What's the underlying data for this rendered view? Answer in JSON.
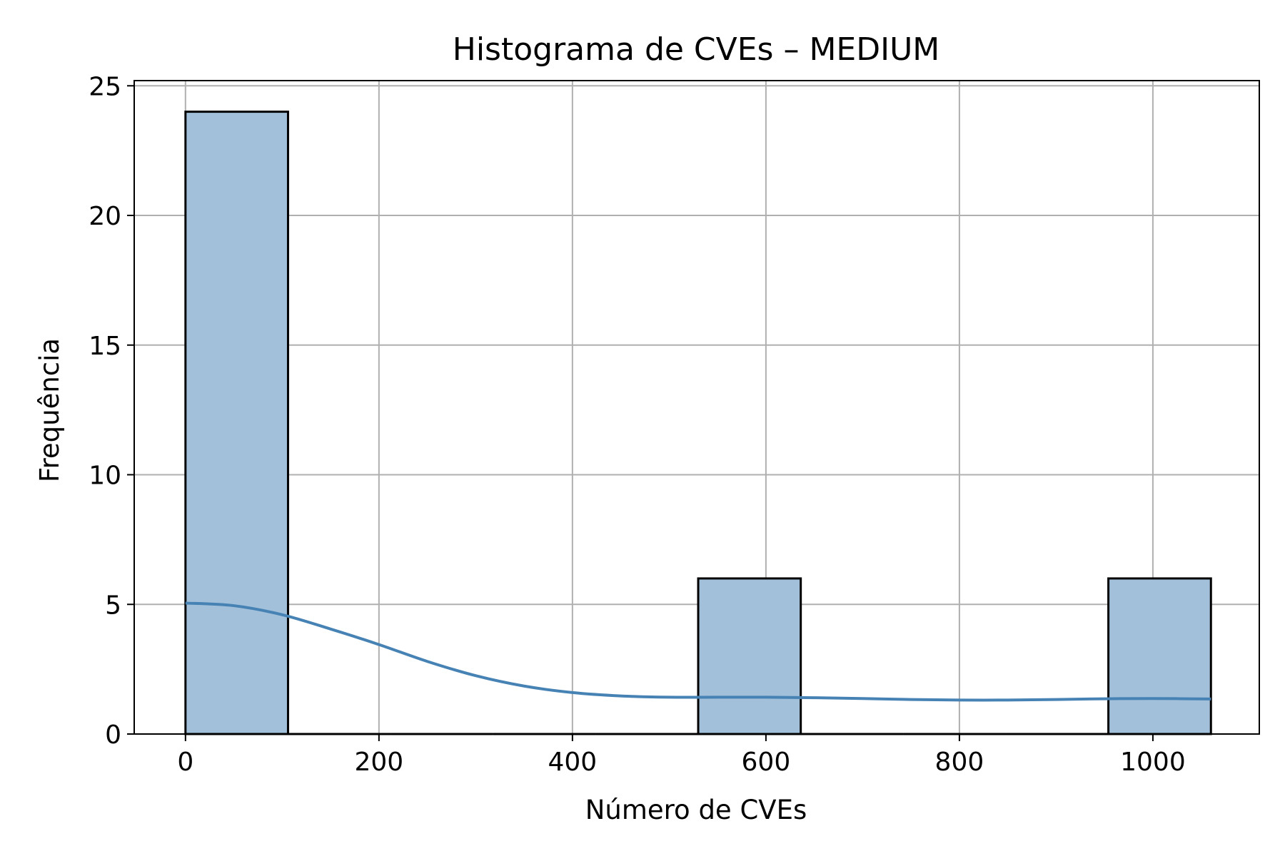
{
  "chart_data": {
    "type": "bar",
    "title": "Histograma de CVEs – MEDIUM",
    "xlabel": "Número de CVEs",
    "ylabel": "Frequência",
    "xlim": [
      -53,
      1110
    ],
    "ylim": [
      0,
      25.2
    ],
    "xticks": [
      0,
      200,
      400,
      600,
      800,
      1000
    ],
    "yticks": [
      0,
      5,
      10,
      15,
      20,
      25
    ],
    "grid": true,
    "bins": [
      {
        "x0": 0,
        "x1": 106,
        "count": 24
      },
      {
        "x0": 106,
        "x1": 212,
        "count": 0
      },
      {
        "x0": 212,
        "x1": 318,
        "count": 0
      },
      {
        "x0": 318,
        "x1": 424,
        "count": 0
      },
      {
        "x0": 424,
        "x1": 530,
        "count": 0
      },
      {
        "x0": 530,
        "x1": 636,
        "count": 6
      },
      {
        "x0": 636,
        "x1": 742,
        "count": 0
      },
      {
        "x0": 742,
        "x1": 848,
        "count": 0
      },
      {
        "x0": 848,
        "x1": 954,
        "count": 0
      },
      {
        "x0": 954,
        "x1": 1060,
        "count": 6
      }
    ],
    "kde": {
      "x": [
        0,
        50,
        100,
        150,
        200,
        250,
        300,
        350,
        400,
        450,
        500,
        550,
        600,
        650,
        700,
        750,
        800,
        850,
        900,
        950,
        1000,
        1060
      ],
      "y": [
        5.05,
        4.95,
        4.6,
        4.05,
        3.45,
        2.8,
        2.25,
        1.85,
        1.6,
        1.47,
        1.42,
        1.42,
        1.42,
        1.4,
        1.37,
        1.33,
        1.31,
        1.31,
        1.33,
        1.36,
        1.37,
        1.35
      ]
    },
    "colors": {
      "bar_fill": "#a3c0da",
      "bar_edge": "#000000",
      "kde_line": "#4682b4",
      "grid": "#b0b0b0"
    }
  }
}
